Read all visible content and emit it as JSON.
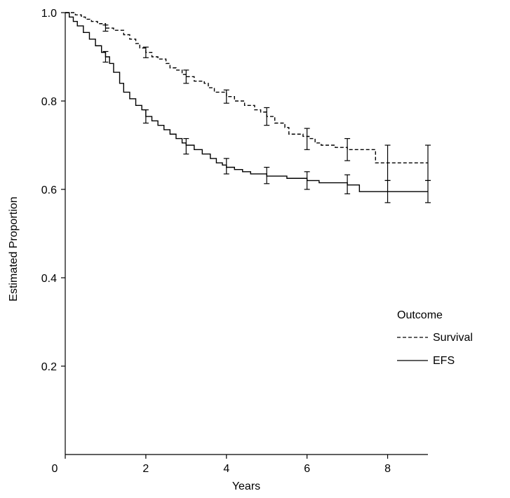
{
  "chart_data": {
    "type": "line",
    "title": "",
    "xlabel": "Years",
    "ylabel": "Estimated Proportion",
    "xlim": [
      0,
      9
    ],
    "ylim": [
      0,
      1.0
    ],
    "x_ticks": [
      0,
      2,
      4,
      6,
      8
    ],
    "y_ticks": [
      0.2,
      0.4,
      0.6,
      0.8,
      1.0
    ],
    "y_tick_labels": [
      "0.2",
      "0.4",
      "0.6",
      "0.8",
      "1.0"
    ],
    "x_tick_labels": [
      "0",
      "2",
      "4",
      "6",
      "8"
    ],
    "grid": false,
    "legend": {
      "title": "Outcome",
      "placement": "right",
      "entries": [
        "Survival",
        "EFS"
      ]
    },
    "series": [
      {
        "name": "Survival",
        "line_style": "dashed",
        "step": true,
        "points": [
          [
            0,
            1.0
          ],
          [
            0.15,
            1.0
          ],
          [
            0.25,
            0.995
          ],
          [
            0.4,
            0.99
          ],
          [
            0.5,
            0.985
          ],
          [
            0.65,
            0.98
          ],
          [
            0.8,
            0.975
          ],
          [
            1.0,
            0.965
          ],
          [
            1.2,
            0.96
          ],
          [
            1.45,
            0.95
          ],
          [
            1.6,
            0.94
          ],
          [
            1.75,
            0.93
          ],
          [
            1.85,
            0.92
          ],
          [
            2.0,
            0.91
          ],
          [
            2.15,
            0.9
          ],
          [
            2.3,
            0.895
          ],
          [
            2.5,
            0.885
          ],
          [
            2.6,
            0.875
          ],
          [
            2.75,
            0.87
          ],
          [
            2.9,
            0.86
          ],
          [
            3.0,
            0.855
          ],
          [
            3.2,
            0.845
          ],
          [
            3.45,
            0.84
          ],
          [
            3.55,
            0.83
          ],
          [
            3.7,
            0.82
          ],
          [
            4.0,
            0.81
          ],
          [
            4.2,
            0.8
          ],
          [
            4.45,
            0.79
          ],
          [
            4.7,
            0.78
          ],
          [
            4.85,
            0.775
          ],
          [
            5.0,
            0.765
          ],
          [
            5.2,
            0.75
          ],
          [
            5.45,
            0.74
          ],
          [
            5.55,
            0.725
          ],
          [
            5.9,
            0.72
          ],
          [
            6.05,
            0.715
          ],
          [
            6.2,
            0.705
          ],
          [
            6.35,
            0.7
          ],
          [
            6.7,
            0.695
          ],
          [
            7.0,
            0.69
          ],
          [
            7.7,
            0.66
          ],
          [
            9.0,
            0.66
          ]
        ],
        "error_bars": [
          {
            "x": 1.0,
            "y": 0.965,
            "low": 0.958,
            "high": 0.972
          },
          {
            "x": 2.0,
            "y": 0.91,
            "low": 0.898,
            "high": 0.922
          },
          {
            "x": 3.0,
            "y": 0.855,
            "low": 0.84,
            "high": 0.87
          },
          {
            "x": 4.0,
            "y": 0.81,
            "low": 0.795,
            "high": 0.825
          },
          {
            "x": 5.0,
            "y": 0.765,
            "low": 0.745,
            "high": 0.785
          },
          {
            "x": 6.0,
            "y": 0.715,
            "low": 0.69,
            "high": 0.738
          },
          {
            "x": 7.0,
            "y": 0.69,
            "low": 0.665,
            "high": 0.715
          },
          {
            "x": 8.0,
            "y": 0.66,
            "low": 0.62,
            "high": 0.7
          },
          {
            "x": 9.0,
            "y": 0.66,
            "low": 0.62,
            "high": 0.7
          }
        ]
      },
      {
        "name": "EFS",
        "line_style": "solid",
        "step": true,
        "points": [
          [
            0,
            1.0
          ],
          [
            0.1,
            0.99
          ],
          [
            0.2,
            0.98
          ],
          [
            0.3,
            0.97
          ],
          [
            0.45,
            0.955
          ],
          [
            0.6,
            0.94
          ],
          [
            0.75,
            0.925
          ],
          [
            0.9,
            0.91
          ],
          [
            1.0,
            0.9
          ],
          [
            1.1,
            0.885
          ],
          [
            1.2,
            0.865
          ],
          [
            1.35,
            0.84
          ],
          [
            1.45,
            0.82
          ],
          [
            1.6,
            0.805
          ],
          [
            1.75,
            0.79
          ],
          [
            1.9,
            0.78
          ],
          [
            2.0,
            0.765
          ],
          [
            2.15,
            0.755
          ],
          [
            2.3,
            0.745
          ],
          [
            2.45,
            0.735
          ],
          [
            2.6,
            0.725
          ],
          [
            2.75,
            0.715
          ],
          [
            2.9,
            0.705
          ],
          [
            3.0,
            0.7
          ],
          [
            3.2,
            0.69
          ],
          [
            3.4,
            0.68
          ],
          [
            3.6,
            0.67
          ],
          [
            3.75,
            0.66
          ],
          [
            3.9,
            0.655
          ],
          [
            4.0,
            0.65
          ],
          [
            4.2,
            0.645
          ],
          [
            4.4,
            0.64
          ],
          [
            4.6,
            0.635
          ],
          [
            5.0,
            0.63
          ],
          [
            5.5,
            0.625
          ],
          [
            6.0,
            0.62
          ],
          [
            6.3,
            0.615
          ],
          [
            7.0,
            0.61
          ],
          [
            7.3,
            0.595
          ],
          [
            9.0,
            0.595
          ]
        ],
        "error_bars": [
          {
            "x": 1.0,
            "y": 0.9,
            "low": 0.888,
            "high": 0.912
          },
          {
            "x": 2.0,
            "y": 0.765,
            "low": 0.75,
            "high": 0.78
          },
          {
            "x": 3.0,
            "y": 0.7,
            "low": 0.68,
            "high": 0.715
          },
          {
            "x": 4.0,
            "y": 0.65,
            "low": 0.635,
            "high": 0.67
          },
          {
            "x": 5.0,
            "y": 0.63,
            "low": 0.613,
            "high": 0.65
          },
          {
            "x": 6.0,
            "y": 0.62,
            "low": 0.6,
            "high": 0.64
          },
          {
            "x": 7.0,
            "y": 0.61,
            "low": 0.59,
            "high": 0.633
          },
          {
            "x": 8.0,
            "y": 0.595,
            "low": 0.57,
            "high": 0.62
          },
          {
            "x": 9.0,
            "y": 0.595,
            "low": 0.57,
            "high": 0.62
          }
        ]
      }
    ]
  }
}
